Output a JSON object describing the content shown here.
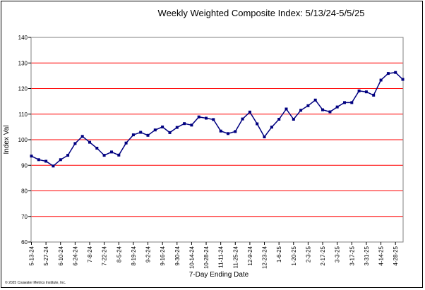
{
  "chart_data": {
    "type": "line",
    "title": "Weekly Weighted Composite Index:  5/13/24-5/5/25",
    "xlabel": "7-Day Ending Date",
    "ylabel": "Index Val",
    "ylim": [
      60,
      140
    ],
    "yticks": [
      60,
      70,
      80,
      90,
      100,
      110,
      120,
      130,
      140
    ],
    "grid": true,
    "legend": "none",
    "colors": {
      "line": "#000080",
      "marker": "#000080",
      "grid": "#ff0000",
      "plot_border": "#808080"
    },
    "x_tick_labels": [
      "5-13-24",
      "5-27-24",
      "6-10-24",
      "6-24-24",
      "7-8-24",
      "7-22-24",
      "8-5-24",
      "8-19-24",
      "9-2-24",
      "9-16-24",
      "9-30-24",
      "10-14-24",
      "10-28-24",
      "11-11-24",
      "11-25-24",
      "12-9-24",
      "12-23-24",
      "1-6-25",
      "1-20-25",
      "2-3-25",
      "2-17-25",
      "3-3-25",
      "3-17-25",
      "3-31-25",
      "4-14-25",
      "4-28-25"
    ],
    "x": [
      "5-13-24",
      "5-20-24",
      "5-27-24",
      "6-3-24",
      "6-10-24",
      "6-17-24",
      "6-24-24",
      "7-1-24",
      "7-8-24",
      "7-15-24",
      "7-22-24",
      "7-29-24",
      "8-5-24",
      "8-12-24",
      "8-19-24",
      "8-26-24",
      "9-2-24",
      "9-9-24",
      "9-16-24",
      "9-23-24",
      "9-30-24",
      "10-7-24",
      "10-14-24",
      "10-21-24",
      "10-28-24",
      "11-4-24",
      "11-11-24",
      "11-18-24",
      "11-25-24",
      "12-2-24",
      "12-9-24",
      "12-16-24",
      "12-23-24",
      "12-30-24",
      "1-6-25",
      "1-13-25",
      "1-20-25",
      "1-27-25",
      "2-3-25",
      "2-10-25",
      "2-17-25",
      "2-24-25",
      "3-3-25",
      "3-10-25",
      "3-17-25",
      "3-24-25",
      "3-31-25",
      "4-7-25",
      "4-14-25",
      "4-21-25",
      "4-28-25",
      "5-5-25"
    ],
    "series": [
      {
        "values": [
          93.6,
          92.2,
          91.6,
          89.7,
          92.2,
          93.9,
          98.5,
          101.3,
          99.0,
          96.7,
          93.9,
          95.2,
          94.0,
          98.7,
          101.9,
          102.9,
          101.7,
          103.8,
          105.0,
          102.8,
          104.8,
          106.3,
          105.7,
          108.9,
          108.4,
          107.9,
          103.4,
          102.4,
          103.2,
          108.1,
          110.8,
          106.2,
          101.1,
          104.9,
          108.0,
          112.0,
          108.0,
          111.5,
          113.3,
          115.5,
          111.7,
          110.9,
          112.8,
          114.5,
          114.5,
          119.1,
          118.7,
          117.4,
          123.3,
          125.9,
          126.3,
          123.6
        ]
      }
    ]
  },
  "footer": {
    "copyright": "© 2025 Couwater Metrics Institute, Inc."
  }
}
